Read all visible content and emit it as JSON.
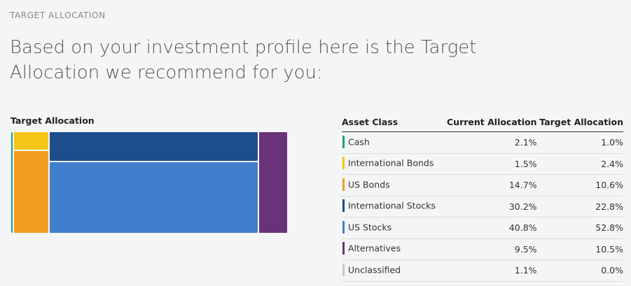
{
  "section_label": "TARGET ALLOCATION",
  "headline": "Based on your investment profile here is the Target Allocation we recommend for you:",
  "chart": {
    "title": "Target Allocation"
  },
  "table": {
    "headers": {
      "asset_class": "Asset Class",
      "current": "Current Allocation",
      "target": "Target Allocation"
    },
    "rows": [
      {
        "asset": "Cash",
        "current": "2.1%",
        "target": "1.0%",
        "color": "#1aa37f"
      },
      {
        "asset": "International Bonds",
        "current": "1.5%",
        "target": "2.4%",
        "color": "#f5c518"
      },
      {
        "asset": "US Bonds",
        "current": "14.7%",
        "target": "10.6%",
        "color": "#f29e1e"
      },
      {
        "asset": "International Stocks",
        "current": "30.2%",
        "target": "22.8%",
        "color": "#1e4d8c"
      },
      {
        "asset": "US Stocks",
        "current": "40.8%",
        "target": "52.8%",
        "color": "#3f7fcc"
      },
      {
        "asset": "Alternatives",
        "current": "9.5%",
        "target": "10.5%",
        "color": "#6a3278"
      },
      {
        "asset": "Unclassified",
        "current": "1.1%",
        "target": "0.0%",
        "color": "#c8c8c8"
      }
    ]
  },
  "chart_data": {
    "type": "treemap",
    "title": "Target Allocation",
    "categories": [
      "Cash",
      "International Bonds",
      "US Bonds",
      "International Stocks",
      "US Stocks",
      "Alternatives"
    ],
    "values": [
      1.0,
      2.4,
      10.6,
      22.8,
      52.8,
      10.5
    ],
    "colors": [
      "#1aa37f",
      "#f5c518",
      "#f29e1e",
      "#1e4d8c",
      "#3f7fcc",
      "#6a3278"
    ]
  }
}
